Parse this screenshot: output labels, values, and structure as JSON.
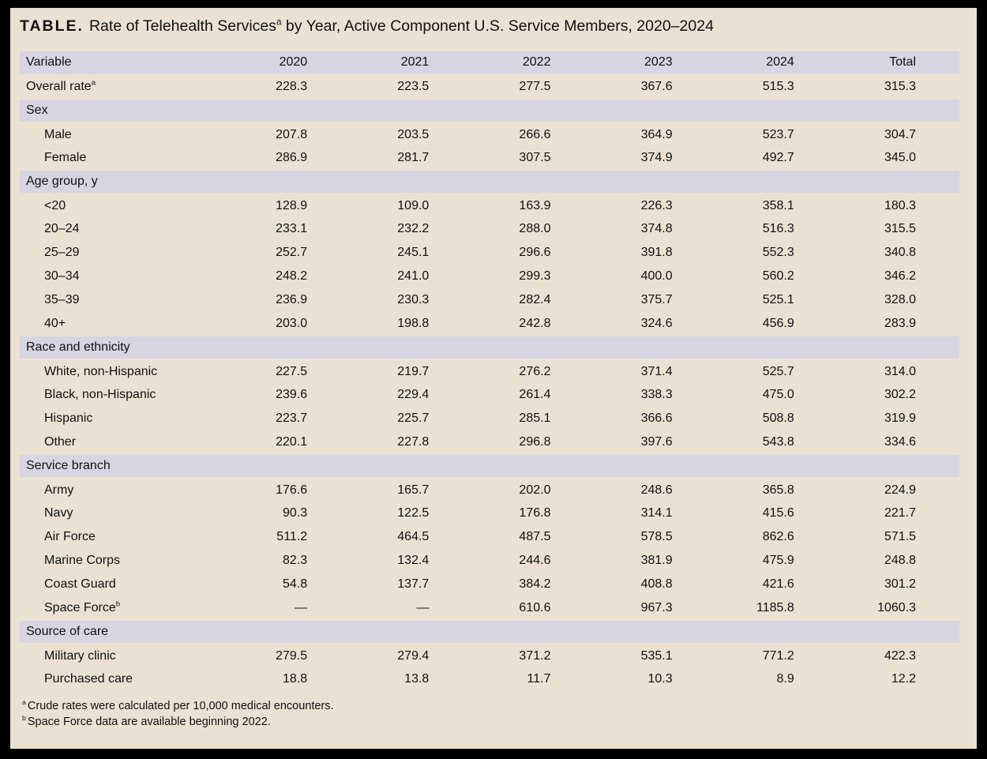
{
  "colors": {
    "frame": "#000000",
    "panel_background": "#ebe1d2",
    "band_background": "#d7d5e1",
    "text": "#111111"
  },
  "title": {
    "label": "TABLE.",
    "before_sup": "Rate of Telehealth Services",
    "sup": "a",
    "after_sup": " by Year, Active Component U.S. Service Members, 2020–2024"
  },
  "table": {
    "columns": [
      "Variable",
      "2020",
      "2021",
      "2022",
      "2023",
      "2024",
      "Total"
    ],
    "rows": [
      {
        "type": "data",
        "label": "Overall rate",
        "sup": "a",
        "indent": false,
        "values": [
          "228.3",
          "223.5",
          "277.5",
          "367.6",
          "515.3",
          "315.3"
        ]
      },
      {
        "type": "section",
        "label": "Sex"
      },
      {
        "type": "data",
        "label": "Male",
        "indent": true,
        "values": [
          "207.8",
          "203.5",
          "266.6",
          "364.9",
          "523.7",
          "304.7"
        ]
      },
      {
        "type": "data",
        "label": "Female",
        "indent": true,
        "values": [
          "286.9",
          "281.7",
          "307.5",
          "374.9",
          "492.7",
          "345.0"
        ]
      },
      {
        "type": "section",
        "label": "Age group, y"
      },
      {
        "type": "data",
        "label": "<20",
        "indent": true,
        "values": [
          "128.9",
          "109.0",
          "163.9",
          "226.3",
          "358.1",
          "180.3"
        ]
      },
      {
        "type": "data",
        "label": "20–24",
        "indent": true,
        "values": [
          "233.1",
          "232.2",
          "288.0",
          "374.8",
          "516.3",
          "315.5"
        ]
      },
      {
        "type": "data",
        "label": "25–29",
        "indent": true,
        "values": [
          "252.7",
          "245.1",
          "296.6",
          "391.8",
          "552.3",
          "340.8"
        ]
      },
      {
        "type": "data",
        "label": "30–34",
        "indent": true,
        "values": [
          "248.2",
          "241.0",
          "299.3",
          "400.0",
          "560.2",
          "346.2"
        ]
      },
      {
        "type": "data",
        "label": "35–39",
        "indent": true,
        "values": [
          "236.9",
          "230.3",
          "282.4",
          "375.7",
          "525.1",
          "328.0"
        ]
      },
      {
        "type": "data",
        "label": "40+",
        "indent": true,
        "values": [
          "203.0",
          "198.8",
          "242.8",
          "324.6",
          "456.9",
          "283.9"
        ]
      },
      {
        "type": "section",
        "label": "Race and ethnicity"
      },
      {
        "type": "data",
        "label": "White, non-Hispanic",
        "indent": true,
        "values": [
          "227.5",
          "219.7",
          "276.2",
          "371.4",
          "525.7",
          "314.0"
        ]
      },
      {
        "type": "data",
        "label": "Black, non-Hispanic",
        "indent": true,
        "values": [
          "239.6",
          "229.4",
          "261.4",
          "338.3",
          "475.0",
          "302.2"
        ]
      },
      {
        "type": "data",
        "label": "Hispanic",
        "indent": true,
        "values": [
          "223.7",
          "225.7",
          "285.1",
          "366.6",
          "508.8",
          "319.9"
        ]
      },
      {
        "type": "data",
        "label": "Other",
        "indent": true,
        "values": [
          "220.1",
          "227.8",
          "296.8",
          "397.6",
          "543.8",
          "334.6"
        ]
      },
      {
        "type": "section",
        "label": "Service branch"
      },
      {
        "type": "data",
        "label": "Army",
        "indent": true,
        "values": [
          "176.6",
          "165.7",
          "202.0",
          "248.6",
          "365.8",
          "224.9"
        ]
      },
      {
        "type": "data",
        "label": "Navy",
        "indent": true,
        "values": [
          "90.3",
          "122.5",
          "176.8",
          "314.1",
          "415.6",
          "221.7"
        ]
      },
      {
        "type": "data",
        "label": "Air Force",
        "indent": true,
        "values": [
          "511.2",
          "464.5",
          "487.5",
          "578.5",
          "862.6",
          "571.5"
        ]
      },
      {
        "type": "data",
        "label": "Marine Corps",
        "indent": true,
        "values": [
          "82.3",
          "132.4",
          "244.6",
          "381.9",
          "475.9",
          "248.8"
        ]
      },
      {
        "type": "data",
        "label": "Coast Guard",
        "indent": true,
        "values": [
          "54.8",
          "137.7",
          "384.2",
          "408.8",
          "421.6",
          "301.2"
        ]
      },
      {
        "type": "data",
        "label": "Space Force",
        "sup": "b",
        "indent": true,
        "values": [
          "—",
          "—",
          "610.6",
          "967.3",
          "1185.8",
          "1060.3"
        ]
      },
      {
        "type": "section",
        "label": "Source of care"
      },
      {
        "type": "data",
        "label": "Military clinic",
        "indent": true,
        "values": [
          "279.5",
          "279.4",
          "371.2",
          "535.1",
          "771.2",
          "422.3"
        ]
      },
      {
        "type": "data",
        "label": "Purchased care",
        "indent": true,
        "values": [
          "18.8",
          "13.8",
          "11.7",
          "10.3",
          "8.9",
          "12.2"
        ]
      }
    ]
  },
  "footnotes": [
    {
      "sup": "a",
      "text": "Crude rates were calculated per 10,000 medical encounters."
    },
    {
      "sup": "b",
      "text": "Space Force data are available beginning 2022."
    }
  ]
}
